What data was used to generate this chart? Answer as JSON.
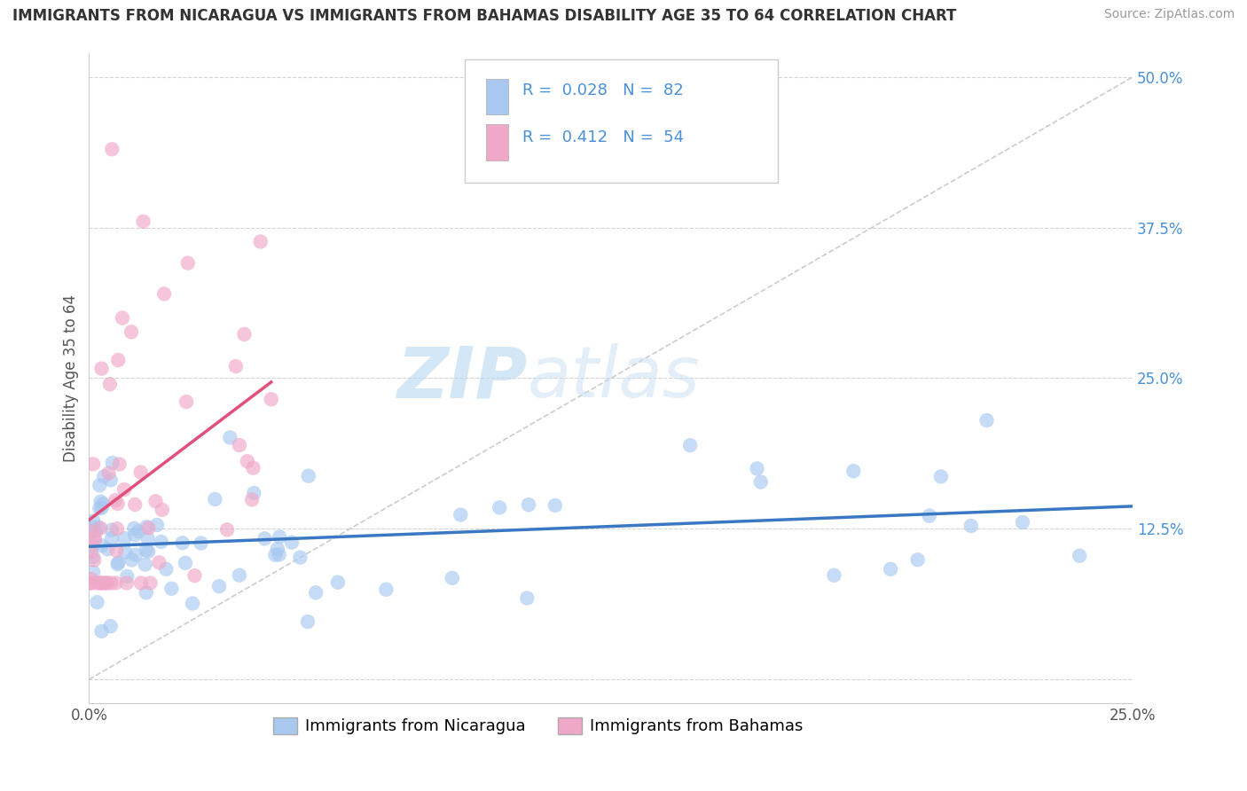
{
  "title": "IMMIGRANTS FROM NICARAGUA VS IMMIGRANTS FROM BAHAMAS DISABILITY AGE 35 TO 64 CORRELATION CHART",
  "source": "Source: ZipAtlas.com",
  "ylabel": "Disability Age 35 to 64",
  "xlim": [
    0.0,
    0.25
  ],
  "ylim": [
    0.0,
    0.5
  ],
  "nicaragua_R": 0.028,
  "nicaragua_N": 82,
  "bahamas_R": 0.412,
  "bahamas_N": 54,
  "nicaragua_color": "#a8c8f0",
  "bahamas_color": "#f0a8c8",
  "nicaragua_line_color": "#3b78c3",
  "bahamas_line_color": "#e0507a",
  "diagonal_color": "#cccccc",
  "background_color": "#ffffff",
  "grid_color": "#d0d0d0",
  "watermark_zip": "ZIP",
  "watermark_atlas": "atlas",
  "legend_label_1": "Immigrants from Nicaragua",
  "legend_label_2": "Immigrants from Bahamas",
  "title_fontsize": 12,
  "tick_fontsize": 12,
  "ylabel_fontsize": 12
}
